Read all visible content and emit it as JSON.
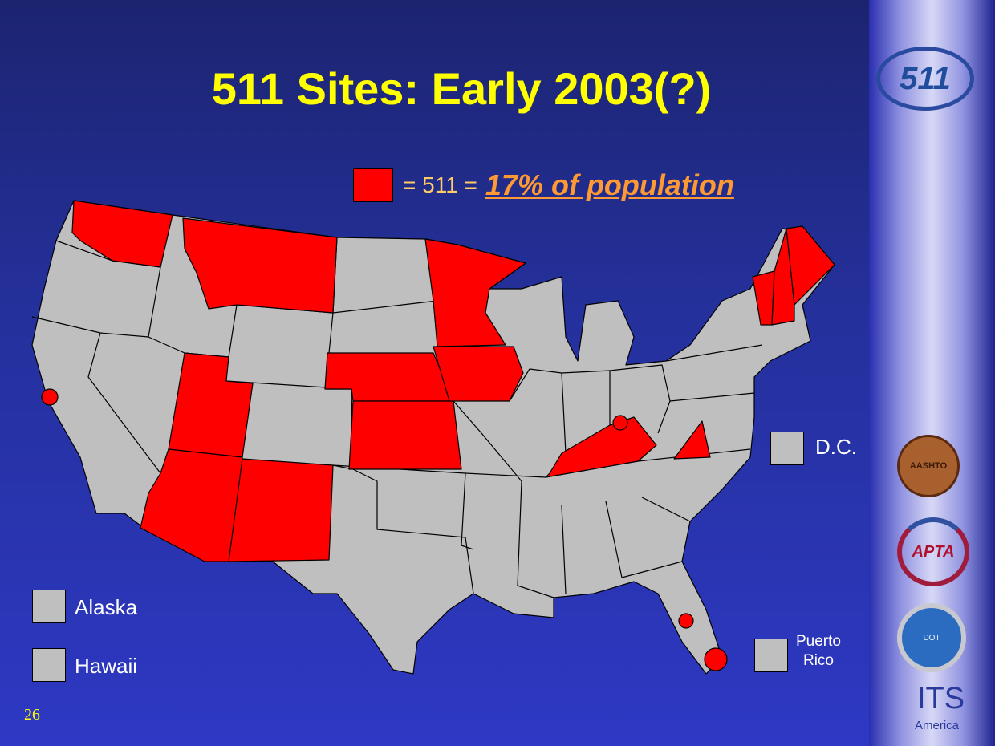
{
  "title": "511 Sites: Early 2003(?)",
  "legend": {
    "swatch_color": "#ff0000",
    "equals": "= 511 =",
    "population": "17% of population"
  },
  "map": {
    "highlighted_states": [
      "Washington",
      "Montana",
      "Minnesota",
      "Maine",
      "New Hampshire",
      "Vermont",
      "Utah",
      "Arizona",
      "New Mexico",
      "Nebraska",
      "Kansas",
      "Iowa",
      "Kentucky",
      "Virginia (partial)"
    ],
    "point_sites": [
      "California (SF Bay Area)",
      "Kentucky (Cincinnati/N. KY)",
      "Florida (Orlando)",
      "Florida (South)"
    ],
    "highlight_color": "#ff0000",
    "base_color": "#bfbfbf"
  },
  "territories": {
    "dc": "D.C.",
    "alaska": "Alaska",
    "hawaii": "Hawaii",
    "puerto_rico_1": "Puerto",
    "puerto_rico_2": "Rico"
  },
  "page_number": "26",
  "logos": {
    "top": "511",
    "aashto": "AASHTO",
    "apta": "APTA",
    "dot": "DOT",
    "its_1": "ITS",
    "its_2": "America"
  }
}
